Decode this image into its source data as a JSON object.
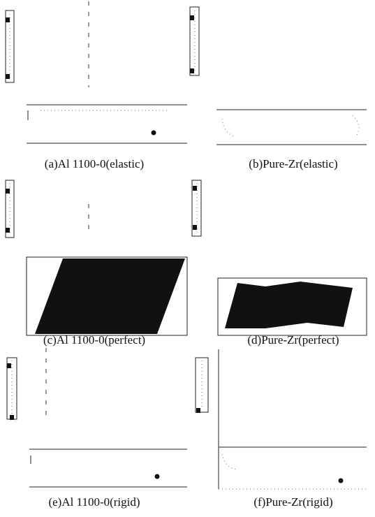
{
  "panels": [
    {
      "caption": "(a)Al 1100-0(elastic)"
    },
    {
      "caption": "(b)Pure-Zr(elastic)"
    },
    {
      "caption": "(c)Al 1100-0(perfect)"
    },
    {
      "caption": "(d)Pure-Zr(perfect)"
    },
    {
      "caption": "(e)Al 1100-0(rigid)"
    },
    {
      "caption": "(f)Pure-Zr(rigid)"
    }
  ]
}
